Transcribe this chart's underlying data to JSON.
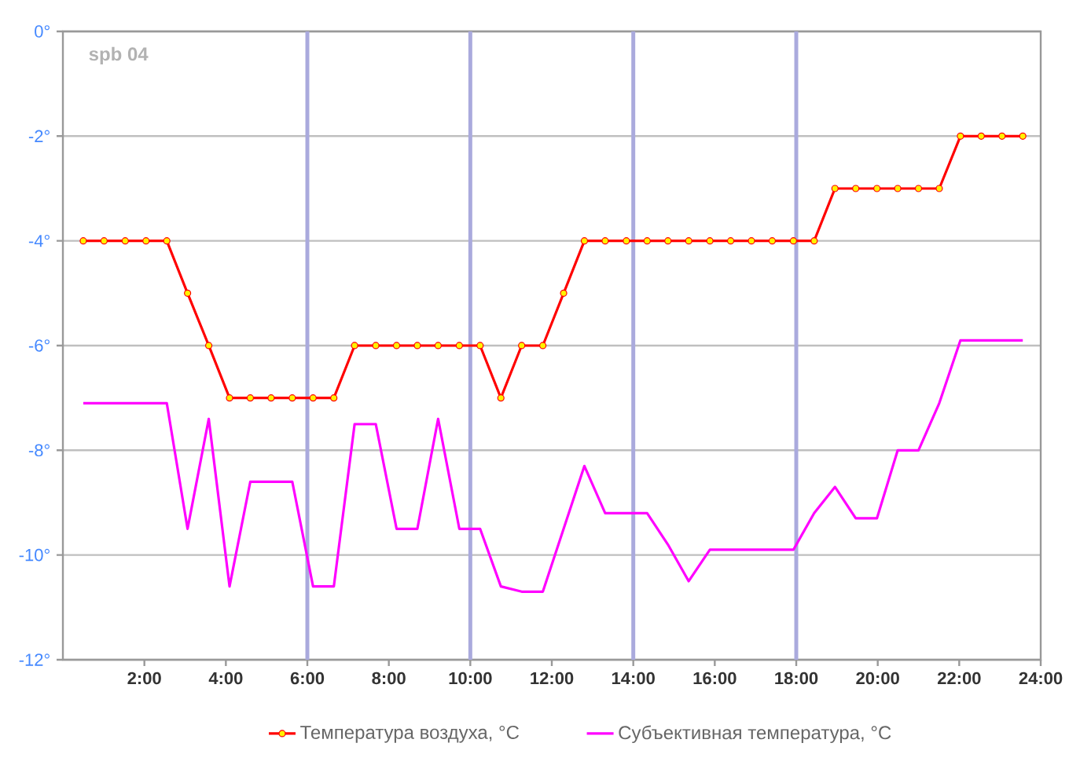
{
  "chart_data": {
    "type": "line",
    "xlim": [
      0,
      24
    ],
    "ylim": [
      -12,
      0
    ],
    "xticks": [
      {
        "value": 2,
        "label": "2:00"
      },
      {
        "value": 4,
        "label": "4:00"
      },
      {
        "value": 6,
        "label": "6:00"
      },
      {
        "value": 8,
        "label": "8:00"
      },
      {
        "value": 10,
        "label": "10:00"
      },
      {
        "value": 12,
        "label": "12:00"
      },
      {
        "value": 14,
        "label": "14:00"
      },
      {
        "value": 16,
        "label": "16:00"
      },
      {
        "value": 18,
        "label": "18:00"
      },
      {
        "value": 20,
        "label": "20:00"
      },
      {
        "value": 22,
        "label": "22:00"
      },
      {
        "value": 24,
        "label": "24:00"
      }
    ],
    "yticks": [
      {
        "value": 0,
        "label": "0°"
      },
      {
        "value": -2,
        "label": "-2°"
      },
      {
        "value": -4,
        "label": "-4°"
      },
      {
        "value": -6,
        "label": "-6°"
      },
      {
        "value": -8,
        "label": "-8°"
      },
      {
        "value": -10,
        "label": "-10°"
      },
      {
        "value": -12,
        "label": "-12°"
      }
    ],
    "grid": "y",
    "legend": "bottom",
    "annotations": [
      "spb 04"
    ],
    "ref_lines": [
      {
        "axis": "x",
        "value": 6,
        "color": "#aaaadd"
      },
      {
        "axis": "x",
        "value": 10,
        "color": "#aaaadd"
      },
      {
        "axis": "x",
        "value": 14,
        "color": "#aaaadd"
      },
      {
        "axis": "x",
        "value": 18,
        "color": "#aaaadd"
      }
    ],
    "series": [
      {
        "name": "Температура воздуха, °C",
        "color": "#ff0000",
        "marker": "circle",
        "x": [
          0.5,
          1.01,
          1.53,
          2.04,
          2.55,
          3.06,
          3.58,
          4.09,
          4.6,
          5.11,
          5.63,
          6.14,
          6.65,
          7.16,
          7.68,
          8.19,
          8.7,
          9.21,
          9.73,
          10.24,
          10.75,
          11.26,
          11.78,
          12.29,
          12.8,
          13.31,
          13.83,
          14.34,
          14.85,
          15.36,
          15.88,
          16.39,
          16.9,
          17.41,
          17.93,
          18.44,
          18.95,
          19.46,
          19.98,
          20.49,
          21.0,
          21.51,
          22.03,
          22.54,
          23.05,
          23.56
        ],
        "values": [
          -4,
          -4,
          -4,
          -4,
          -4,
          -5,
          -6,
          -7,
          -7,
          -7,
          -7,
          -7,
          -7,
          -6,
          -6,
          -6,
          -6,
          -6,
          -6,
          -6,
          -7,
          -6,
          -6,
          -5,
          -4,
          -4,
          -4,
          -4,
          -4,
          -4,
          -4,
          -4,
          -4,
          -4,
          -4,
          -4,
          -3,
          -3,
          -3,
          -3,
          -3,
          -3,
          -2,
          -2,
          -2,
          -2
        ]
      },
      {
        "name": "Субъективная температура, °C",
        "color": "#ff00ff",
        "marker": "none",
        "x": [
          0.5,
          1.01,
          1.53,
          2.04,
          2.55,
          3.06,
          3.58,
          4.09,
          4.6,
          5.11,
          5.63,
          6.14,
          6.65,
          7.16,
          7.68,
          8.19,
          8.7,
          9.21,
          9.73,
          10.24,
          10.75,
          11.26,
          11.78,
          12.29,
          12.8,
          13.31,
          13.83,
          14.34,
          14.85,
          15.36,
          15.88,
          16.39,
          16.9,
          17.41,
          17.93,
          18.44,
          18.95,
          19.46,
          19.98,
          20.49,
          21.0,
          21.51,
          22.03,
          22.54,
          23.05,
          23.56
        ],
        "values": [
          -7.1,
          -7.1,
          -7.1,
          -7.1,
          -7.1,
          -9.5,
          -7.4,
          -10.6,
          -8.6,
          -8.6,
          -8.6,
          -10.6,
          -10.6,
          -7.5,
          -7.5,
          -9.5,
          -9.5,
          -7.4,
          -9.5,
          -9.5,
          -10.6,
          -10.7,
          -10.7,
          -9.5,
          -8.3,
          -9.2,
          -9.2,
          -9.2,
          -9.8,
          -10.5,
          -9.9,
          -9.9,
          -9.9,
          -9.9,
          -9.9,
          -9.2,
          -8.7,
          -9.3,
          -9.3,
          -8.0,
          -8.0,
          -7.1,
          -5.9,
          -5.9,
          -5.9,
          -5.9
        ]
      }
    ]
  }
}
